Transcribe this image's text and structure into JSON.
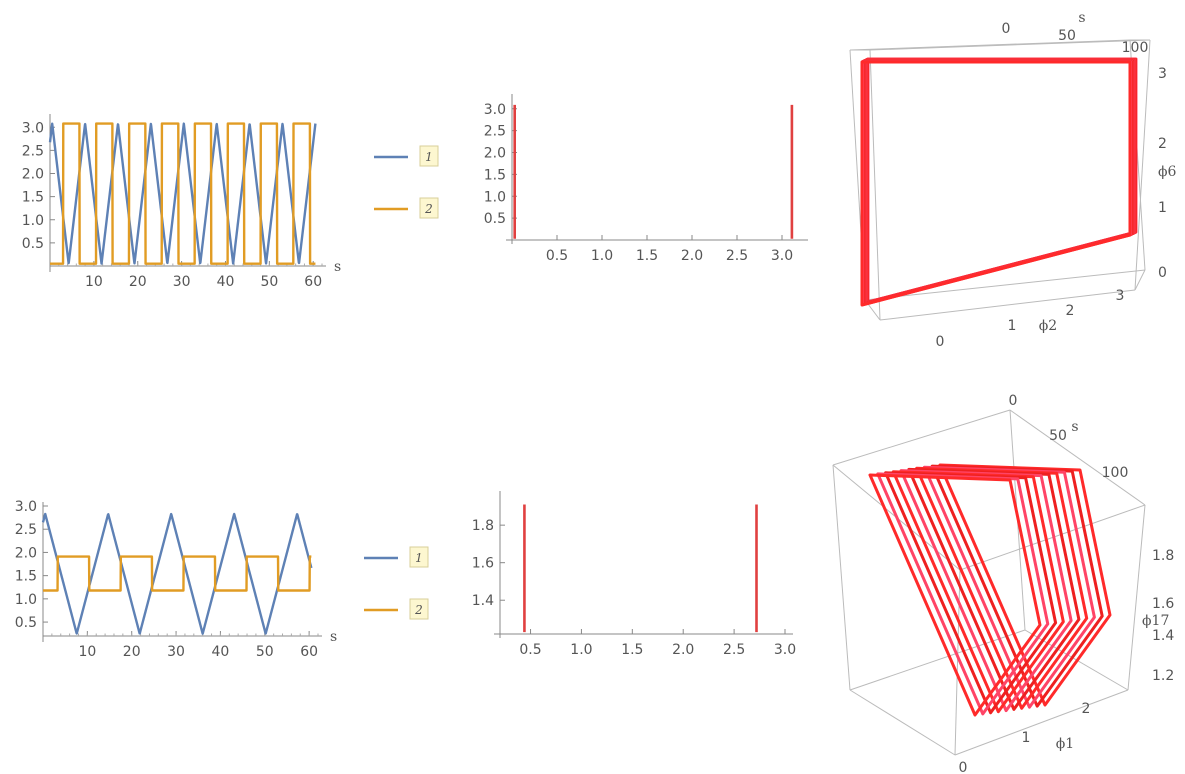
{
  "chart_data": [
    {
      "type": "line",
      "panel": "top-left",
      "xlabel": "s",
      "xlim": [
        0,
        62
      ],
      "ylim": [
        0,
        3.2
      ],
      "xticks": [
        "10",
        "20",
        "30",
        "40",
        "50",
        "60"
      ],
      "yticks": [
        "0.5",
        "1.0",
        "1.5",
        "2.0",
        "2.5",
        "3.0"
      ],
      "series": [
        {
          "name": "1",
          "color": "#5E81B5",
          "shape": "triangle",
          "period": 7.5,
          "phase": 0.5,
          "min": 0.05,
          "max": 3.08
        },
        {
          "name": "2",
          "color": "#E19C24",
          "shape": "square",
          "period": 7.5,
          "phase": 3.0,
          "min": 0.05,
          "max": 3.08
        }
      ],
      "legend": "right"
    },
    {
      "type": "line",
      "panel": "top-middle",
      "description_free": true,
      "xlim": [
        0,
        3.2
      ],
      "ylim": [
        0,
        3.2
      ],
      "xticks": [
        "0.5",
        "1.0",
        "1.5",
        "2.0",
        "2.5",
        "3.0"
      ],
      "yticks": [
        "0.5",
        "1.0",
        "1.5",
        "2.0",
        "2.5",
        "3.0"
      ],
      "path": [
        [
          0.03,
          0.03
        ],
        [
          3.11,
          0.03
        ],
        [
          3.11,
          3.09
        ],
        [
          0.03,
          3.09
        ],
        [
          0.03,
          0.03
        ]
      ]
    },
    {
      "type": "line3d",
      "panel": "top-right",
      "axis_labels": [
        "s",
        "ϕ2",
        "ϕ6"
      ],
      "s_ticks": [
        "0",
        "50",
        "100"
      ],
      "x_ticks": [
        "0",
        "1",
        "2",
        "3"
      ],
      "z_ticks": [
        "0",
        "1",
        "2",
        "3"
      ],
      "loops": 14
    },
    {
      "type": "line",
      "panel": "bottom-left",
      "xlabel": "s",
      "xlim": [
        0,
        62
      ],
      "ylim": [
        0.2,
        3.0
      ],
      "xticks": [
        "10",
        "20",
        "30",
        "40",
        "50",
        "60"
      ],
      "yticks": [
        "0.5",
        "1.0",
        "1.5",
        "2.0",
        "2.5",
        "3.0"
      ],
      "series": [
        {
          "name": "1",
          "color": "#5E81B5",
          "shape": "triangle",
          "period": 14.2,
          "phase": 0.5,
          "min": 0.25,
          "max": 2.83
        },
        {
          "name": "2",
          "color": "#E19C24",
          "shape": "square",
          "period": 14.2,
          "phase": 3.3,
          "min": 1.18,
          "max": 1.91
        }
      ],
      "legend": "right"
    },
    {
      "type": "line",
      "panel": "bottom-middle",
      "xlim": [
        0.2,
        3.0
      ],
      "ylim": [
        1.22,
        1.95
      ],
      "xticks": [
        "0.5",
        "1.0",
        "1.5",
        "2.0",
        "2.5",
        "3.0"
      ],
      "yticks": [
        "1.4",
        "1.6",
        "1.8"
      ],
      "path": [
        [
          0.44,
          1.23
        ],
        [
          2.72,
          1.23
        ],
        [
          2.72,
          1.91
        ],
        [
          0.36,
          1.91
        ],
        [
          0.44,
          1.91
        ],
        [
          0.44,
          1.23
        ]
      ]
    },
    {
      "type": "line3d",
      "panel": "bottom-right",
      "axis_labels": [
        "s",
        "ϕ1",
        "ϕ17"
      ],
      "s_ticks": [
        "0",
        "50",
        "100"
      ],
      "x_ticks": [
        "0",
        "1",
        "2"
      ],
      "z_ticks": [
        "1.2",
        "1.4",
        "1.6",
        "1.8"
      ],
      "loops": 10
    }
  ],
  "legend_labels": [
    "1",
    "2"
  ]
}
